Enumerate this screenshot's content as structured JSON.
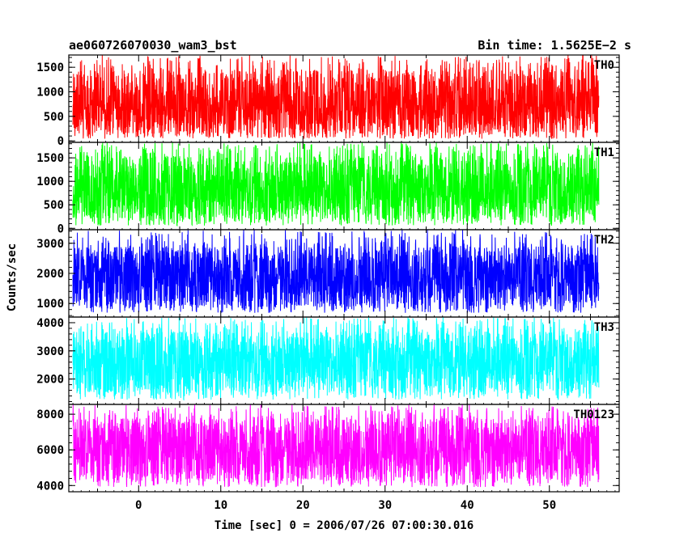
{
  "header": {
    "title": "ae060726070030_wam3_bst",
    "bin_time": "Bin time: 1.5625E−2 s"
  },
  "chart_data": {
    "type": "line",
    "title": "ae060726070030_wam3_bst",
    "xlabel": "Time [sec] 0 = 2006/07/26 07:00:30.016",
    "ylabel": "Counts/sec",
    "xlim": [
      -8.5,
      58.5
    ],
    "x_data_range": [
      -8,
      56
    ],
    "bin_time_s": 0.015625,
    "x_ticks": [
      0,
      10,
      20,
      30,
      40,
      50
    ],
    "x_tick_labels": [
      "0",
      "10",
      "20",
      "30",
      "40",
      "50"
    ],
    "grid": false,
    "legend": "none",
    "panels": [
      {
        "name": "TH0",
        "color": "#ff0000",
        "ylim": [
          -30,
          1750
        ],
        "y_ticks": [
          0,
          500,
          1000,
          1500
        ],
        "y_tick_labels": [
          "0",
          "500",
          "1000",
          "1500"
        ],
        "baseline": 740,
        "lower_envelope": 150,
        "upper_envelope": 1450,
        "max_peak": 1750
      },
      {
        "name": "TH1",
        "color": "#00ff00",
        "ylim": [
          -30,
          1830
        ],
        "y_ticks": [
          0,
          500,
          1000,
          1500
        ],
        "y_tick_labels": [
          "0",
          "500",
          "1000",
          "1500"
        ],
        "baseline": 780,
        "lower_envelope": 180,
        "upper_envelope": 1550,
        "max_peak": 1830
      },
      {
        "name": "TH2",
        "color": "#0000ff",
        "ylim": [
          550,
          3450
        ],
        "y_ticks": [
          1000,
          2000,
          3000
        ],
        "y_tick_labels": [
          "1000",
          "2000",
          "3000"
        ],
        "baseline": 1900,
        "lower_envelope": 900,
        "upper_envelope": 2900,
        "max_peak": 3450
      },
      {
        "name": "TH3",
        "color": "#00ffff",
        "ylim": [
          1100,
          4200
        ],
        "y_ticks": [
          2000,
          3000,
          4000
        ],
        "y_tick_labels": [
          "2000",
          "3000",
          "4000"
        ],
        "baseline": 2600,
        "lower_envelope": 1500,
        "upper_envelope": 3700,
        "max_peak": 4200
      },
      {
        "name": "TH0123",
        "color": "#ff00ff",
        "ylim": [
          3650,
          8550
        ],
        "y_ticks": [
          4000,
          6000,
          8000
        ],
        "y_tick_labels": [
          "4000",
          "6000",
          "8000"
        ],
        "baseline": 6050,
        "lower_envelope": 4300,
        "upper_envelope": 7800,
        "max_peak": 8550
      }
    ]
  }
}
